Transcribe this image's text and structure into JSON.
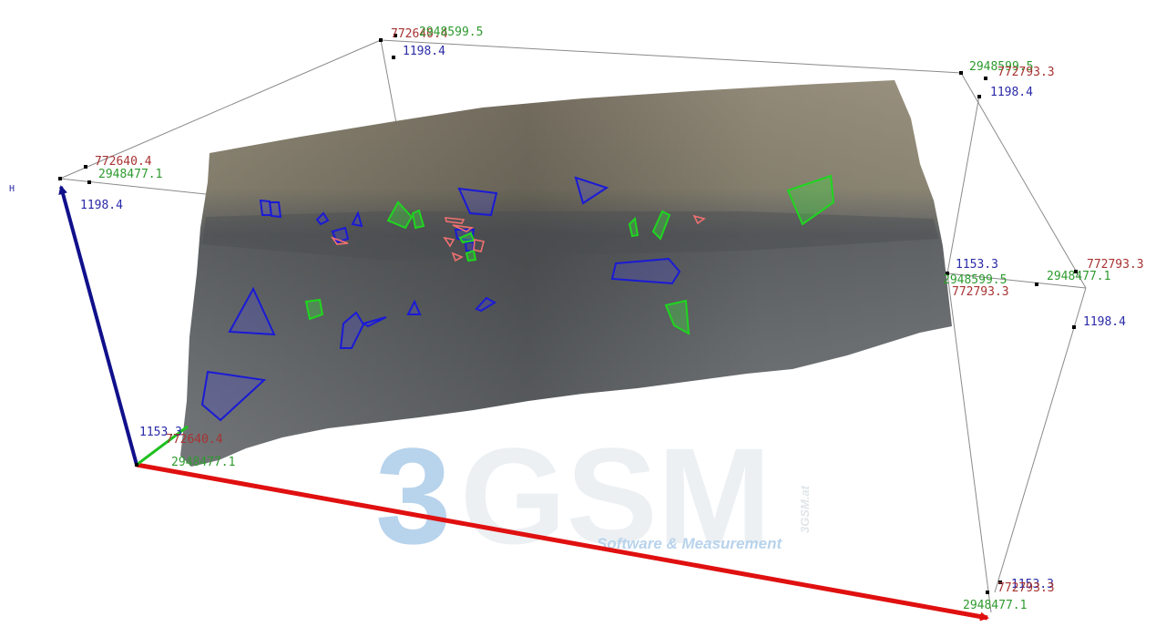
{
  "viewer": {
    "axis_letter": "H",
    "colors": {
      "easting_axis": "#e01010",
      "height_axis": "#10108c",
      "northing_axis": "#20c020",
      "easting_text": "#a83232",
      "northing_text": "#2e9a2e",
      "height_text": "#2a2aa8",
      "joint_set_blue": "#1a1ad6",
      "joint_set_green": "#1fd61f",
      "joint_set_red": "#f07070",
      "bounding_box": "#8a8a8a"
    },
    "corner_labels": {
      "back_top_left": {
        "easting": "772640.4",
        "northing": "2948599.5",
        "height": "1198.4"
      },
      "back_top_right": {
        "northing": "2948599.5",
        "easting": "772793.3",
        "height": "1198.4"
      },
      "front_top_left": {
        "easting": "772640.4",
        "northing": "2948477.1",
        "height": "1198.4"
      },
      "mid_right": {
        "height": "1153.3",
        "northing": "2948599.5",
        "easting": "772793.3"
      },
      "front_top_right": {
        "easting": "772793.3",
        "northing": "2948477.1",
        "height": "1198.4"
      },
      "origin": {
        "height": "1153.3",
        "easting": "772640.4",
        "northing": "2948477.1"
      },
      "bottom_right": {
        "height": "1153.3",
        "easting": "772793.3",
        "northing": "2948477.1"
      }
    }
  },
  "watermark": {
    "logo_digit": "3",
    "logo_letters": "GSM",
    "vertical_text": "3GSM.at",
    "tagline": "Software & Measurement"
  }
}
